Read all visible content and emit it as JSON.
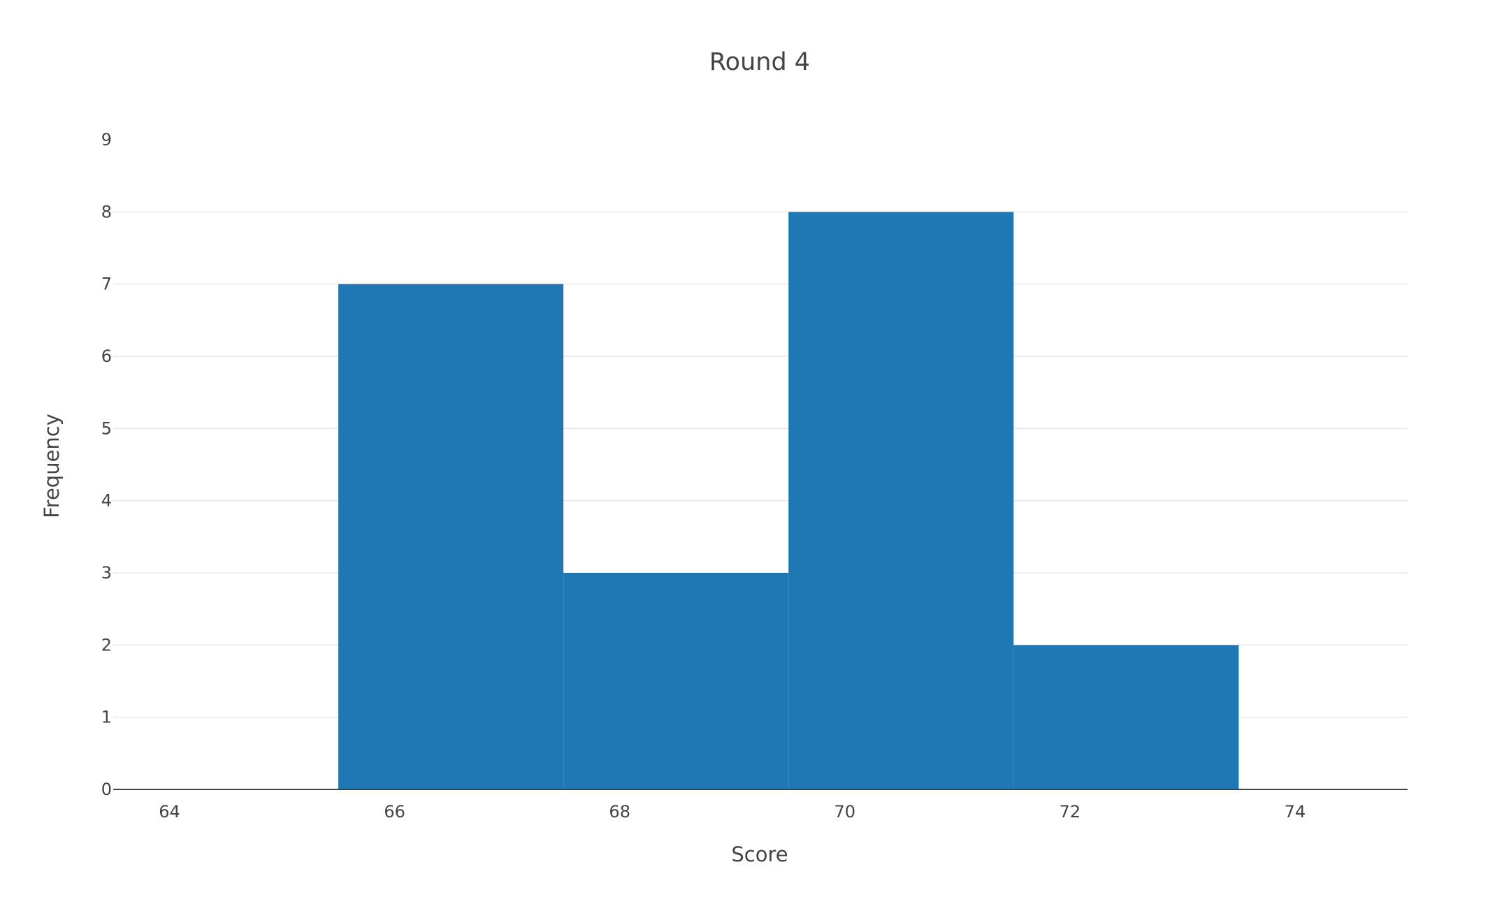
{
  "chart_data": {
    "type": "bar",
    "subtype": "histogram",
    "title": "Round 4",
    "xlabel": "Score",
    "ylabel": "Frequency",
    "bins": [
      {
        "start": 65.5,
        "end": 67.5,
        "count": 7
      },
      {
        "start": 67.5,
        "end": 69.5,
        "count": 3
      },
      {
        "start": 69.5,
        "end": 71.5,
        "count": 8
      },
      {
        "start": 71.5,
        "end": 73.5,
        "count": 2
      }
    ],
    "xlim": [
      63.5,
      75
    ],
    "ylim": [
      0,
      9
    ],
    "xticks": [
      64,
      66,
      68,
      70,
      72,
      74
    ],
    "yticks": [
      0,
      1,
      2,
      3,
      4,
      5,
      6,
      7,
      8,
      9
    ],
    "grid": true,
    "legend": "none",
    "bar_color": "#1f77b4"
  }
}
